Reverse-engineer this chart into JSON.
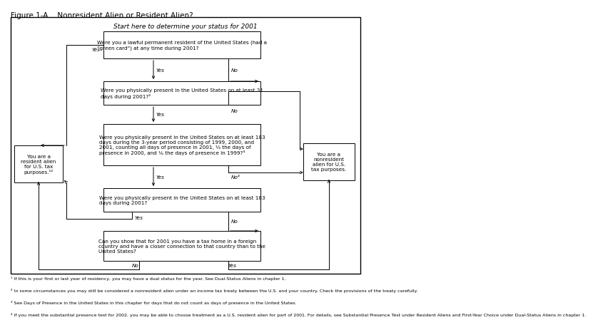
{
  "title": "Figure 1-A.   Nonresident Alien or Resident Alien?",
  "header": "Start here to determine your status for 2001",
  "bg_color": "#ffffff",
  "font_size": 5.2,
  "title_font_size": 7.5,
  "header_font_size": 6.5,
  "footnote_font_size": 4.5,
  "footnotes": [
    "¹ If this is your first or last year of residency, you may have a dual status for the year. See Dual-Status Aliens in chapter 1.",
    "² In some circumstances you may still be considered a nonresident alien under an income tax treaty between the U.S. and your country. Check the provisions of the treaty carefully.",
    "³ See Days of Presence in the United States in this chapter for days that do not count as days of presence in the United States.",
    "⁴ If you meet the substantial presence test for 2002, you may be able to choose treatment as a U.S. resident alien for part of 2001. For details, see Substantial Presence Test under Resident Aliens and First-Year Choice under Dual-Status Aliens in chapter 1."
  ]
}
